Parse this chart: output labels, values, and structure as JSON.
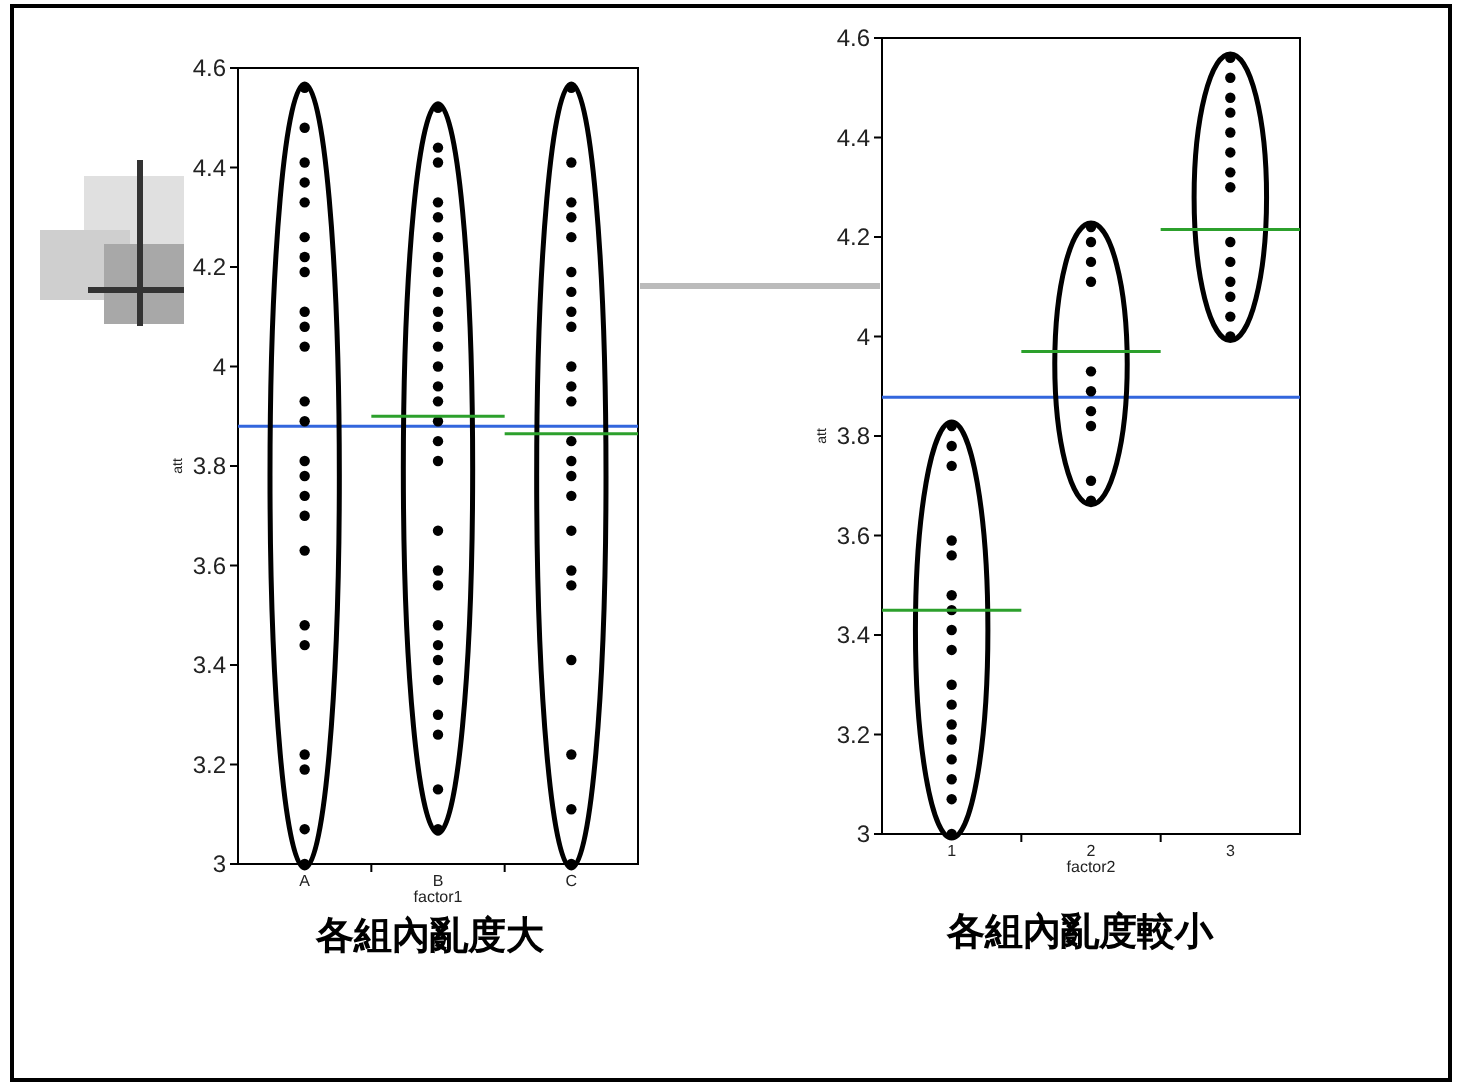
{
  "chart_data": [
    {
      "type": "scatter",
      "categories": [
        "A",
        "B",
        "C"
      ],
      "xlabel": "factor1",
      "ylabel": "att",
      "ylim": [
        3,
        4.6
      ],
      "yticks": [
        3,
        3.2,
        3.4,
        3.6,
        3.8,
        4,
        4.2,
        4.4,
        4.6
      ],
      "marker": "circle",
      "grid": false,
      "series": [
        {
          "color": "#000000",
          "x": [
            "A",
            "A",
            "A",
            "A",
            "A",
            "A",
            "A",
            "A",
            "A",
            "A",
            "A",
            "A",
            "A",
            "A",
            "A",
            "A",
            "A",
            "A",
            "A",
            "A",
            "A",
            "A",
            "A",
            "A"
          ],
          "values": [
            4.56,
            4.48,
            4.41,
            4.37,
            4.33,
            4.26,
            4.22,
            4.19,
            4.11,
            4.08,
            4.04,
            3.93,
            3.89,
            3.81,
            3.78,
            3.74,
            3.7,
            3.63,
            3.48,
            3.44,
            3.22,
            3.19,
            3.07,
            3.0
          ]
        },
        {
          "color": "#000000",
          "x": [
            "B",
            "B",
            "B",
            "B",
            "B",
            "B",
            "B",
            "B",
            "B",
            "B",
            "B",
            "B",
            "B",
            "B",
            "B",
            "B",
            "B",
            "B",
            "B",
            "B",
            "B",
            "B",
            "B",
            "B",
            "B",
            "B",
            "B",
            "B",
            "B"
          ],
          "values": [
            4.52,
            4.44,
            4.41,
            4.33,
            4.3,
            4.26,
            4.22,
            4.19,
            4.15,
            4.11,
            4.08,
            4.04,
            4.0,
            3.96,
            3.93,
            3.89,
            3.85,
            3.81,
            3.67,
            3.59,
            3.56,
            3.48,
            3.44,
            3.41,
            3.37,
            3.3,
            3.26,
            3.15,
            3.07
          ]
        },
        {
          "color": "#000000",
          "x": [
            "C",
            "C",
            "C",
            "C",
            "C",
            "C",
            "C",
            "C",
            "C",
            "C",
            "C",
            "C",
            "C",
            "C",
            "C",
            "C",
            "C",
            "C",
            "C",
            "C",
            "C",
            "C",
            "C"
          ],
          "values": [
            4.56,
            4.41,
            4.33,
            4.3,
            4.26,
            4.19,
            4.15,
            4.11,
            4.08,
            4.0,
            3.96,
            3.93,
            3.85,
            3.81,
            3.78,
            3.74,
            3.67,
            3.59,
            3.56,
            3.41,
            3.22,
            3.11,
            3.0
          ]
        },
        {
          "type": "box",
          "color": "#2ca02c",
          "boxes": [
            null,
            {
              "low": 3.9,
              "q1": 3.9,
              "median": 3.9,
              "q3": 3.9,
              "high": 3.9
            },
            {
              "low": 3.865,
              "q1": 3.865,
              "median": 3.865,
              "q3": 3.865,
              "high": 3.865
            }
          ]
        }
      ],
      "ref_lines": [
        {
          "axis": "y",
          "value": 3.88,
          "color": "#3366dd"
        }
      ],
      "annotations": [
        "各組內亂度大"
      ]
    },
    {
      "type": "scatter",
      "categories": [
        "1",
        "2",
        "3"
      ],
      "xlabel": "factor2",
      "ylabel": "att",
      "ylim": [
        3,
        4.6
      ],
      "yticks": [
        3,
        3.2,
        3.4,
        3.6,
        3.8,
        4,
        4.2,
        4.4,
        4.6
      ],
      "marker": "circle",
      "grid": false,
      "series": [
        {
          "color": "#000000",
          "x": [
            "1",
            "1",
            "1",
            "1",
            "1",
            "1",
            "1",
            "1",
            "1",
            "1",
            "1",
            "1",
            "1",
            "1",
            "1",
            "1",
            "1"
          ],
          "values": [
            3.82,
            3.78,
            3.74,
            3.59,
            3.56,
            3.48,
            3.45,
            3.41,
            3.37,
            3.3,
            3.26,
            3.22,
            3.19,
            3.15,
            3.11,
            3.07,
            3.0
          ]
        },
        {
          "color": "#000000",
          "x": [
            "2",
            "2",
            "2",
            "2",
            "2",
            "2",
            "2",
            "2",
            "2",
            "2"
          ],
          "values": [
            4.22,
            4.19,
            4.15,
            4.11,
            3.93,
            3.89,
            3.85,
            3.82,
            3.71,
            3.67
          ]
        },
        {
          "color": "#000000",
          "x": [
            "3",
            "3",
            "3",
            "3",
            "3",
            "3",
            "3",
            "3",
            "3",
            "3",
            "3",
            "3",
            "3",
            "3"
          ],
          "values": [
            4.56,
            4.52,
            4.48,
            4.45,
            4.41,
            4.37,
            4.33,
            4.3,
            4.19,
            4.15,
            4.11,
            4.08,
            4.04,
            4.0
          ]
        },
        {
          "type": "box",
          "color": "#2ca02c",
          "boxes": [
            {
              "low": 3.45,
              "q1": 3.45,
              "median": 3.45,
              "q3": 3.45,
              "high": 3.45
            },
            {
              "low": 3.97,
              "q1": 3.97,
              "median": 3.97,
              "q3": 3.97,
              "high": 3.97
            },
            {
              "low": 4.215,
              "q1": 4.215,
              "median": 4.215,
              "q3": 4.215,
              "high": 4.215
            }
          ]
        }
      ],
      "ref_lines": [
        {
          "axis": "y",
          "value": 3.878,
          "color": "#3366dd"
        }
      ],
      "annotations": [
        "各組內亂度較小"
      ]
    }
  ]
}
